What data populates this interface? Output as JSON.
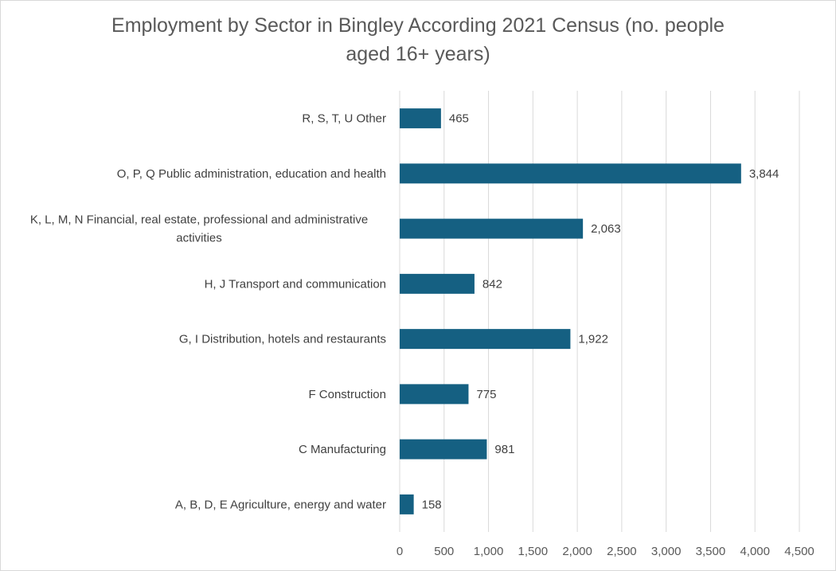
{
  "chart_data": {
    "type": "bar",
    "orientation": "horizontal",
    "title_lines": [
      "Employment by Sector in Bingley According 2021 Census (no. people",
      "aged 16+ years)"
    ],
    "categories": [
      [
        "R, S, T, U Other"
      ],
      [
        "O, P, Q Public administration, education and health"
      ],
      [
        "K, L, M, N Financial, real estate, professional and administrative",
        "activities"
      ],
      [
        "H, J Transport and communication"
      ],
      [
        "G, I Distribution, hotels and restaurants"
      ],
      [
        "F Construction"
      ],
      [
        "C Manufacturing"
      ],
      [
        "A, B, D, E Agriculture, energy and water"
      ]
    ],
    "values": [
      465,
      3844,
      2063,
      842,
      1922,
      775,
      981,
      158
    ],
    "value_labels": [
      "465",
      "3,844",
      "2,063",
      "842",
      "1,922",
      "775",
      "981",
      "158"
    ],
    "xlim": [
      0,
      4500
    ],
    "x_ticks": [
      0,
      500,
      1000,
      1500,
      2000,
      2500,
      3000,
      3500,
      4000,
      4500
    ],
    "x_tick_labels": [
      "0",
      "500",
      "1,000",
      "1,500",
      "2,000",
      "2,500",
      "3,000",
      "3,500",
      "4,000",
      "4,500"
    ],
    "grid": "vertical",
    "legend": "none",
    "bar_color": "#156082",
    "grid_color": "#d9d9d9"
  }
}
